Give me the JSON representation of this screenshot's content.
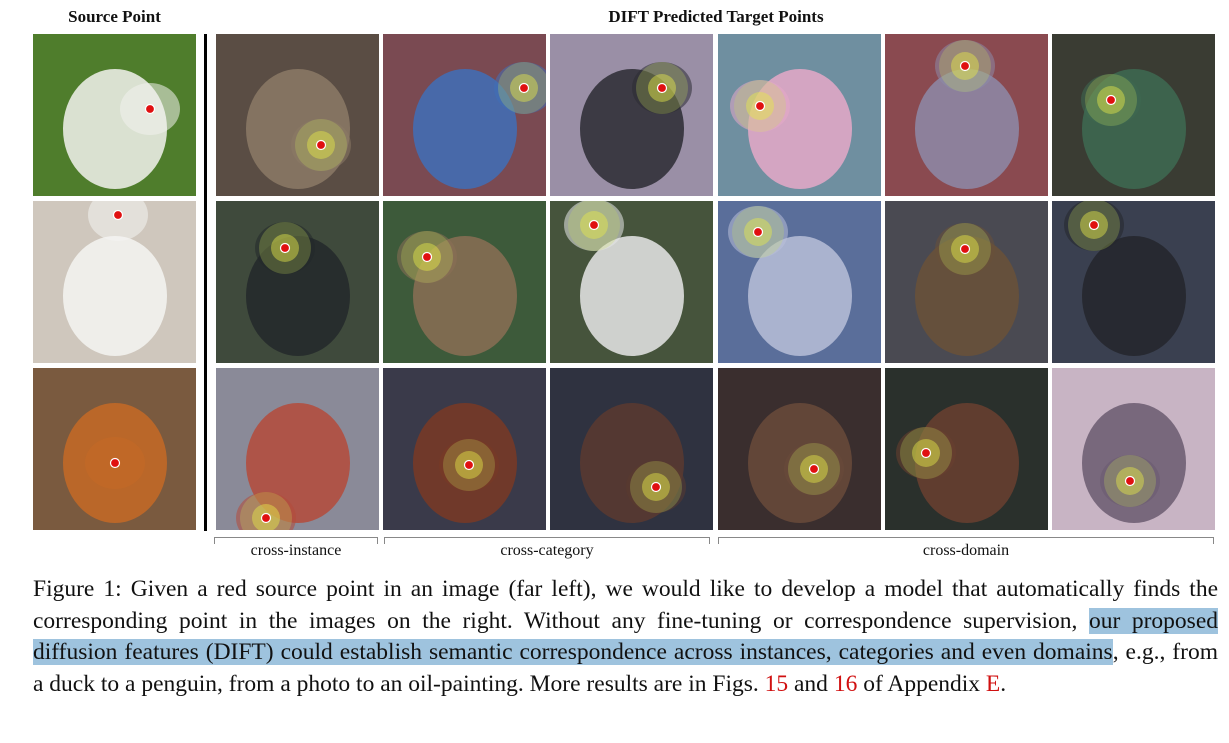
{
  "figure": {
    "source_header": "Source Point",
    "target_header": "DIFT Predicted Target Points",
    "groups": [
      {
        "label": "cross-instance"
      },
      {
        "label": "cross-category"
      },
      {
        "label": "cross-domain"
      }
    ],
    "rows": [
      {
        "source": {
          "name": "duck-photo",
          "bg": "#4f7d2c",
          "fg": "#f2f2ee"
        },
        "targets": [
          {
            "name": "duck-closeup",
            "bg": "#5a4d44",
            "fg": "#8c7a66"
          },
          {
            "name": "roller-bird",
            "bg": "#7a4a52",
            "fg": "#3f6fb8"
          },
          {
            "name": "penguin",
            "bg": "#9a8fa6",
            "fg": "#2b2b33"
          },
          {
            "name": "duck-lotus-painting",
            "bg": "#6f8fa0",
            "fg": "#e6a9c8"
          },
          {
            "name": "bird-sculpture",
            "bg": "#8a4a50",
            "fg": "#8d8aa8"
          },
          {
            "name": "duck-framed-art",
            "bg": "#3a3c33",
            "fg": "#3e6a52"
          }
        ]
      },
      {
        "source": {
          "name": "polar-bear-cub",
          "bg": "#cfc7bd",
          "fg": "#f4f4f2"
        },
        "targets": [
          {
            "name": "black-bear",
            "bg": "#3f4a3c",
            "fg": "#23282a"
          },
          {
            "name": "highland-cow",
            "bg": "#3d5a3a",
            "fg": "#8a6f55"
          },
          {
            "name": "holstein-cow",
            "bg": "#46543c",
            "fg": "#e8e8e8"
          },
          {
            "name": "polar-bear-painting",
            "bg": "#5a6e9a",
            "fg": "#b9c0d8"
          },
          {
            "name": "grizzly-painting",
            "bg": "#4a4a52",
            "fg": "#6a5138"
          },
          {
            "name": "dapper-bear-art",
            "bg": "#3a4050",
            "fg": "#24262c"
          }
        ]
      },
      {
        "source": {
          "name": "acoustic-guitar",
          "bg": "#7a5a3f",
          "fg": "#c56a26"
        },
        "targets": [
          {
            "name": "guitar-row",
            "bg": "#8a8a98",
            "fg": "#b44a3a"
          },
          {
            "name": "violin",
            "bg": "#3a3a4a",
            "fg": "#7a3a24"
          },
          {
            "name": "cello-closeup",
            "bg": "#2f3240",
            "fg": "#5a3a30"
          },
          {
            "name": "cellist-painting",
            "bg": "#3a2e2e",
            "fg": "#6a4a3a"
          },
          {
            "name": "cellist-woman",
            "bg": "#2a302c",
            "fg": "#6a4030"
          },
          {
            "name": "guitar-music-art",
            "bg": "#c8b4c4",
            "fg": "#6a5a70"
          }
        ]
      }
    ]
  },
  "caption": {
    "figure_label": "Figure 1:",
    "text_before": "Given a red source point in an image (far left), we would like to develop a model that automatically finds the corresponding point in the images on the right. Without any fine-tuning or correspondence supervision,",
    "highlighted": "our proposed diffusion features (DIFT) could establish semantic correspondence across instances, categories and even domains",
    "text_after": ", e.g., from a duck to a penguin, from a photo to an oil-painting. More results are in Figs.",
    "ref1": "15",
    "and_word": "and",
    "ref2": "16",
    "of_appendix": "of Appendix",
    "ref3": "E",
    "end": "."
  },
  "colors": {
    "highlight": "#9ec3de",
    "reference": "#d01010",
    "marker": "#e01010"
  }
}
